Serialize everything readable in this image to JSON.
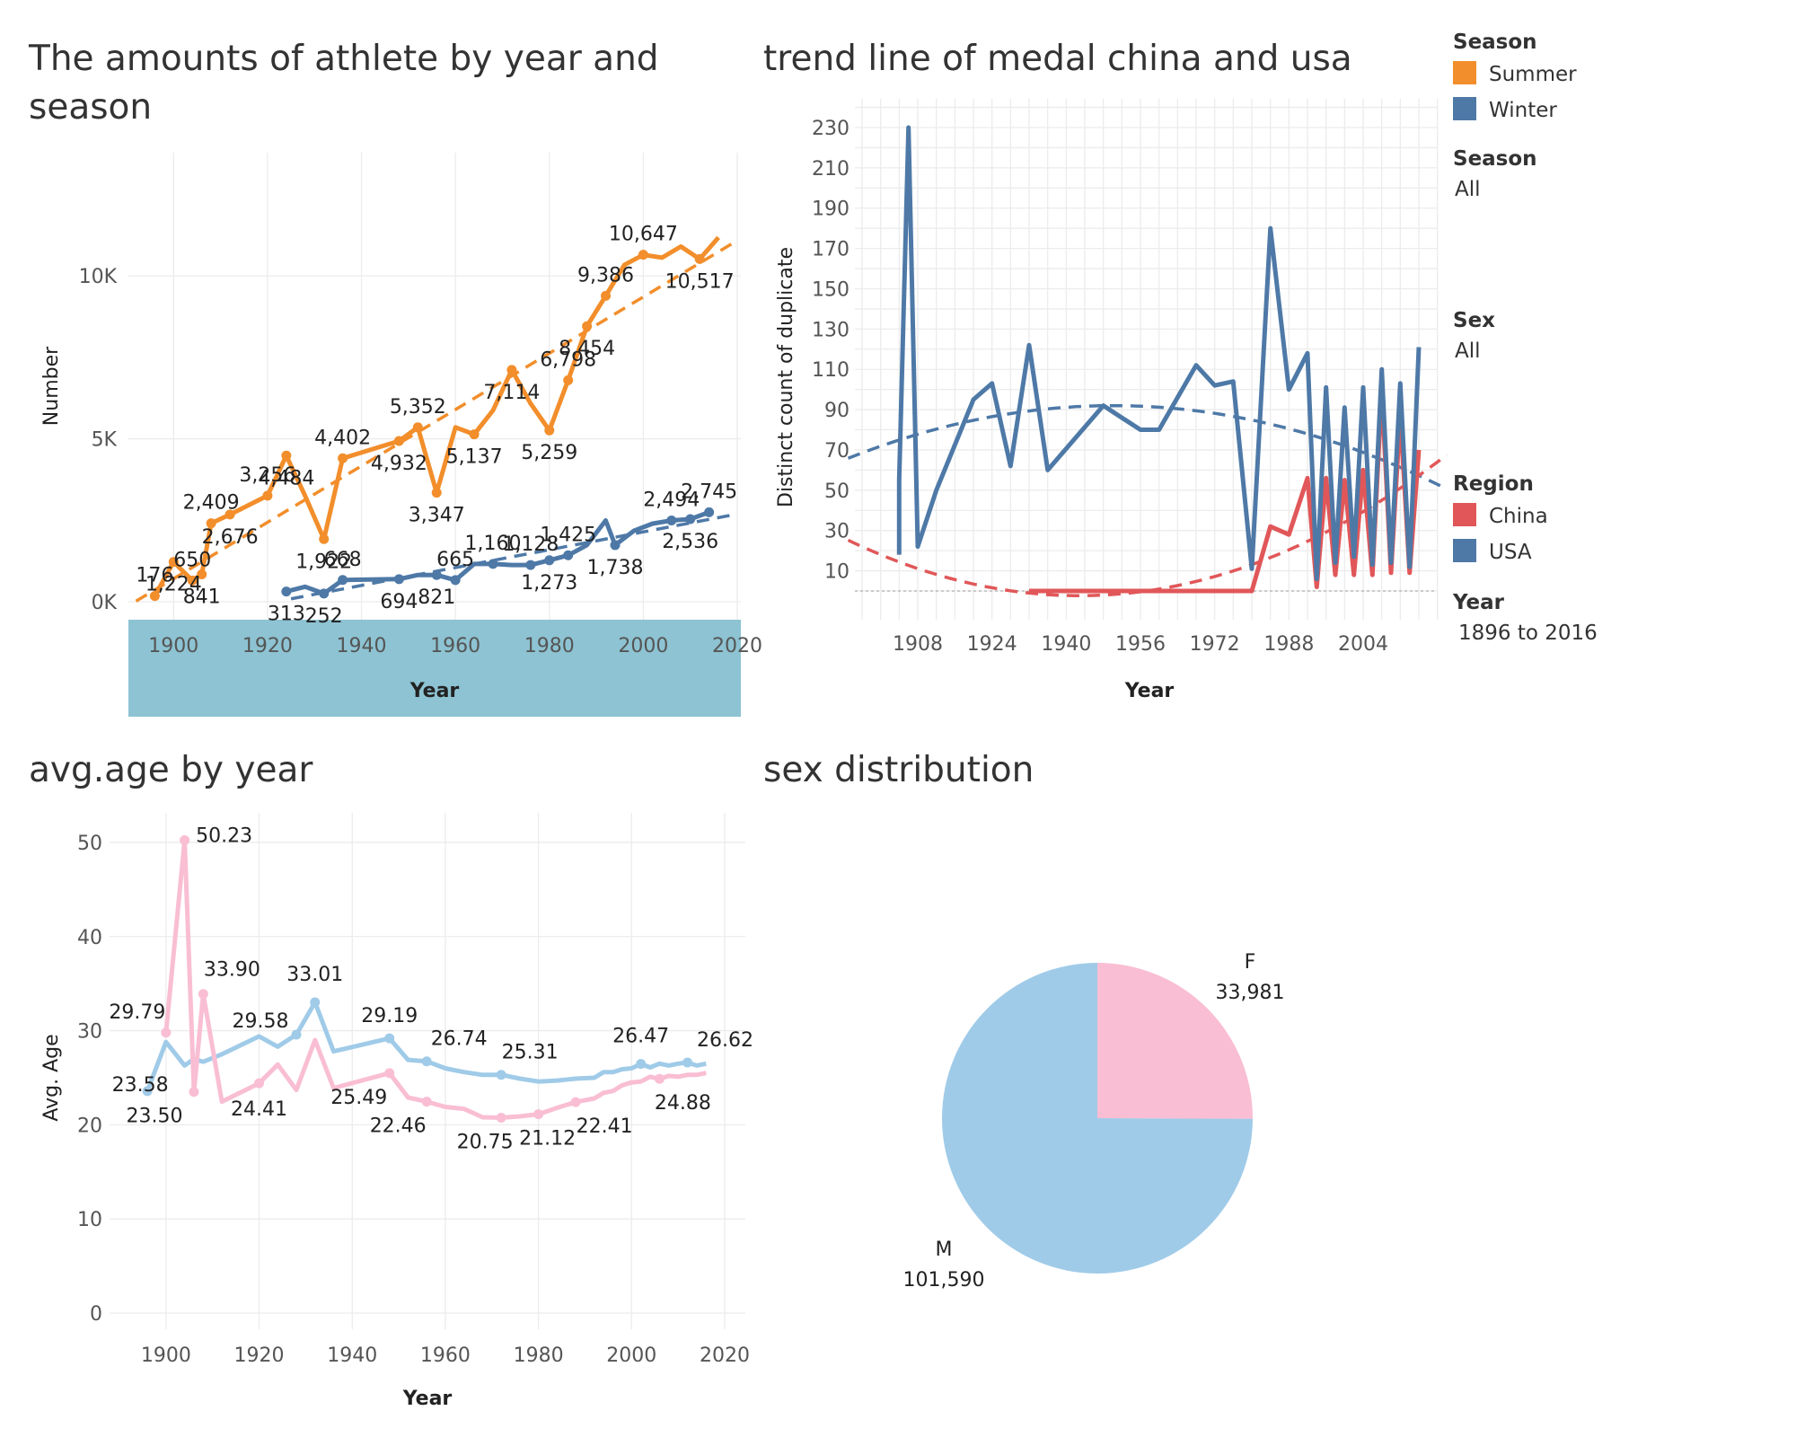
{
  "colors": {
    "summer": "#F28E2B",
    "winter": "#4E79A7",
    "china": "#E15759",
    "usa": "#4E79A7",
    "female": "#F9BED3",
    "male": "#A0CBE8",
    "year_band": "#8DC3D2"
  },
  "legend": {
    "season_title": "Season",
    "season_items": [
      {
        "label": "Summer",
        "color": "#F28E2B"
      },
      {
        "label": "Winter",
        "color": "#4E79A7"
      }
    ],
    "season_filter_title": "Season",
    "season_filter_value": "All",
    "sex_filter_title": "Sex",
    "sex_filter_value": "All",
    "region_title": "Region",
    "region_items": [
      {
        "label": "China",
        "color": "#E15759"
      },
      {
        "label": "USA",
        "color": "#4E79A7"
      }
    ],
    "year_filter_title": "Year",
    "year_filter_value": "1896 to 2016"
  },
  "chart_data": [
    {
      "type": "line",
      "title": "The amounts of athlete by year and season",
      "xlabel": "Year",
      "ylabel": "Number",
      "xlim": [
        1890,
        2020
      ],
      "ylim": [
        0,
        14000
      ],
      "xticks": [
        1900,
        1920,
        1940,
        1960,
        1980,
        2000,
        2020
      ],
      "yticks": [
        {
          "value": 0,
          "label": "0K"
        },
        {
          "value": 5000,
          "label": "5K"
        },
        {
          "value": 10000,
          "label": "10K"
        }
      ],
      "trend_lines": "linear, dashed",
      "series": [
        {
          "name": "Summer",
          "x": [
            1896,
            1900,
            1904,
            1906,
            1908,
            1912,
            1920,
            1924,
            1928,
            1932,
            1936,
            1948,
            1952,
            1956,
            1960,
            1964,
            1968,
            1972,
            1976,
            1980,
            1984,
            1988,
            1992,
            1996,
            2000,
            2004,
            2008,
            2012,
            2016
          ],
          "y": [
            176,
            1224,
            650,
            841,
            2409,
            2676,
            3256,
            4484,
            3246,
            1922,
            4402,
            4932,
            5352,
            3347,
            5352,
            5137,
            5874,
            7114,
            6084,
            5259,
            6798,
            8454,
            9386,
            10339,
            10647,
            10557,
            10899,
            10517,
            11179
          ],
          "labels": [
            "176",
            "1,224",
            "650",
            "841",
            "2,409",
            "2,676",
            "3,256",
            "4,484",
            "",
            "1,922",
            "4,402",
            "4,932",
            "5,352",
            "3,347",
            "",
            "5,137",
            "",
            "7,114",
            "",
            "5,259",
            "6,798",
            "8,454",
            "9,386",
            "",
            "10,647",
            "",
            "",
            "10,517",
            ""
          ]
        },
        {
          "name": "Winter",
          "x": [
            1924,
            1928,
            1932,
            1936,
            1948,
            1952,
            1956,
            1960,
            1964,
            1968,
            1972,
            1976,
            1980,
            1984,
            1988,
            1992,
            1994,
            1998,
            2002,
            2006,
            2010,
            2014
          ],
          "y": [
            313,
            460,
            252,
            668,
            694,
            821,
            821,
            665,
            1160,
            1160,
            1128,
            1128,
            1273,
            1425,
            1738,
            2494,
            1738,
            2176,
            2399,
            2494,
            2536,
            2745
          ],
          "labels": [
            "313",
            "",
            "252",
            "668",
            "694",
            "",
            "821",
            "665",
            "",
            "1,160",
            "",
            "1,128",
            "1,273",
            "1,425",
            "",
            "",
            "1,738",
            "",
            "",
            "2,494",
            "2,536",
            "2,745"
          ]
        }
      ]
    },
    {
      "type": "line",
      "title": "trend line of medal china and usa",
      "xlabel": "Year",
      "ylabel": "Distinct count of duplicate",
      "xlim": [
        1896,
        2016
      ],
      "ylim": [
        0,
        230
      ],
      "xticks": [
        1908,
        1924,
        1940,
        1956,
        1972,
        1988,
        2004
      ],
      "yticks": [
        10,
        30,
        50,
        70,
        90,
        110,
        130,
        150,
        170,
        190,
        210,
        230
      ],
      "trend_lines": "polynomial, dashed",
      "series": [
        {
          "name": "USA",
          "x": [
            1904,
            1904,
            1906,
            1908,
            1912,
            1920,
            1924,
            1928,
            1932,
            1936,
            1948,
            1952,
            1956,
            1960,
            1964,
            1968,
            1972,
            1976,
            1980,
            1984,
            1988,
            1992,
            1994,
            1996,
            1998,
            2000,
            2002,
            2004,
            2006,
            2008,
            2010,
            2012,
            2014,
            2016
          ],
          "y": [
            18,
            55,
            230,
            22,
            50,
            95,
            103,
            62,
            122,
            60,
            92,
            86,
            80,
            80,
            96,
            112,
            102,
            104,
            11,
            180,
            100,
            118,
            6,
            101,
            14,
            91,
            17,
            101,
            13,
            110,
            14,
            103,
            12,
            121
          ]
        },
        {
          "name": "China",
          "x": [
            1932,
            1936,
            1948,
            1952,
            1956,
            1960,
            1964,
            1968,
            1972,
            1976,
            1980,
            1984,
            1988,
            1992,
            1994,
            1996,
            1998,
            2000,
            2002,
            2004,
            2006,
            2008,
            2010,
            2012,
            2014,
            2016
          ],
          "y": [
            0,
            0,
            0,
            0,
            0,
            0,
            0,
            0,
            0,
            0,
            0,
            32,
            28,
            56,
            2,
            56,
            8,
            55,
            8,
            60,
            8,
            100,
            9,
            88,
            9,
            70
          ]
        }
      ]
    },
    {
      "type": "line",
      "title": "avg.age by year",
      "xlabel": "Year",
      "ylabel": "Avg. Age",
      "xlim": [
        1890,
        2020
      ],
      "ylim": [
        0,
        52
      ],
      "xticks": [
        1900,
        1920,
        1940,
        1960,
        1980,
        2000,
        2020
      ],
      "yticks": [
        0,
        10,
        20,
        30,
        40,
        50
      ],
      "series": [
        {
          "name": "M",
          "x": [
            1896,
            1900,
            1904,
            1906,
            1908,
            1912,
            1920,
            1924,
            1928,
            1932,
            1936,
            1948,
            1952,
            1956,
            1960,
            1964,
            1968,
            1972,
            1976,
            1980,
            1984,
            1988,
            1992,
            1994,
            1996,
            1998,
            2000,
            2002,
            2004,
            2006,
            2008,
            2010,
            2012,
            2014,
            2016
          ],
          "y": [
            23.58,
            28.8,
            26.3,
            27.0,
            26.7,
            27.5,
            29.4,
            28.3,
            29.58,
            33.01,
            27.8,
            29.19,
            26.9,
            26.74,
            26.0,
            25.6,
            25.3,
            25.31,
            24.9,
            24.6,
            24.7,
            24.9,
            25.0,
            25.6,
            25.6,
            25.9,
            26.0,
            26.47,
            26.1,
            26.5,
            26.3,
            26.5,
            26.62,
            26.3,
            26.5
          ],
          "labels": [
            "23.58",
            "",
            "",
            "",
            "",
            "",
            "",
            "",
            "29.58",
            "33.01",
            "",
            "29.19",
            "",
            "26.74",
            "",
            "",
            "",
            "25.31",
            "",
            "",
            "",
            "",
            "",
            "",
            "",
            "",
            "",
            "26.47",
            "",
            "",
            "",
            "",
            "26.62",
            "",
            ""
          ]
        },
        {
          "name": "F",
          "x": [
            1900,
            1904,
            1906,
            1908,
            1912,
            1920,
            1924,
            1928,
            1932,
            1936,
            1948,
            1952,
            1956,
            1960,
            1964,
            1968,
            1972,
            1976,
            1980,
            1984,
            1988,
            1992,
            1994,
            1996,
            1998,
            2000,
            2002,
            2004,
            2006,
            2008,
            2010,
            2012,
            2014,
            2016
          ],
          "y": [
            29.79,
            50.23,
            23.5,
            33.9,
            22.46,
            24.41,
            26.4,
            23.7,
            29.0,
            23.9,
            25.49,
            22.9,
            22.46,
            21.9,
            21.7,
            20.8,
            20.75,
            20.9,
            21.12,
            21.8,
            22.41,
            22.8,
            23.4,
            23.6,
            24.2,
            24.5,
            24.6,
            25.1,
            24.88,
            25.2,
            25.1,
            25.3,
            25.3,
            25.5
          ],
          "labels": [
            "29.79",
            "50.23",
            "23.50",
            "33.90",
            "",
            "24.41",
            "",
            "",
            "",
            "",
            "25.49",
            "",
            "22.46",
            "",
            "",
            "",
            "20.75",
            "",
            "21.12",
            "",
            "22.41",
            "",
            "",
            "",
            "",
            "",
            "",
            "",
            "24.88",
            "",
            "",
            "",
            "",
            ""
          ]
        }
      ]
    },
    {
      "type": "pie",
      "title": "sex distribution",
      "slices": [
        {
          "label": "F",
          "value": 33981,
          "value_label": "33,981",
          "color": "#F9BED3"
        },
        {
          "label": "M",
          "value": 101590,
          "value_label": "101,590",
          "color": "#A0CBE8"
        }
      ]
    }
  ]
}
